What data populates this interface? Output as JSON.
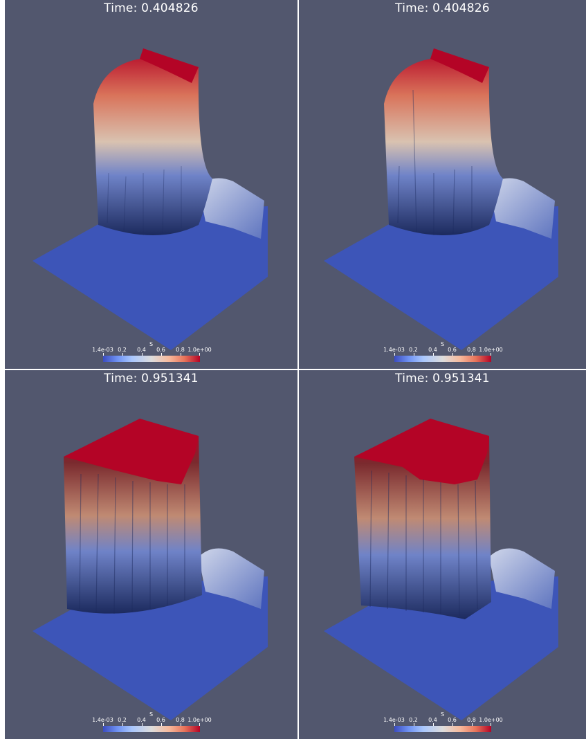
{
  "colors": {
    "background": "#52576e",
    "high": "#b40426",
    "low": "#3b4cc0",
    "mid": "#dddcdc"
  },
  "viewports": [
    {
      "title": "Time: 0.404826",
      "colorbar": {
        "label": "S",
        "ticks": [
          "1.4e-03",
          "0.2",
          "0.4",
          "0.6",
          "0.8",
          "1.0e+00"
        ]
      }
    },
    {
      "title": "Time: 0.404826",
      "colorbar": {
        "label": "S",
        "ticks": [
          "1.4e-03",
          "0.2",
          "0.4",
          "0.6",
          "0.8",
          "1.0e+00"
        ]
      }
    },
    {
      "title": "Time: 0.951341",
      "colorbar": {
        "label": "S",
        "ticks": [
          "1.4e-03",
          "0.2",
          "0.4",
          "0.6",
          "0.8",
          "1.0e+00"
        ]
      }
    },
    {
      "title": "Time: 0.951341",
      "colorbar": {
        "label": "S",
        "ticks": [
          "1.4e-03",
          "0.2",
          "0.4",
          "0.6",
          "0.8",
          "1.0e+00"
        ]
      }
    }
  ]
}
